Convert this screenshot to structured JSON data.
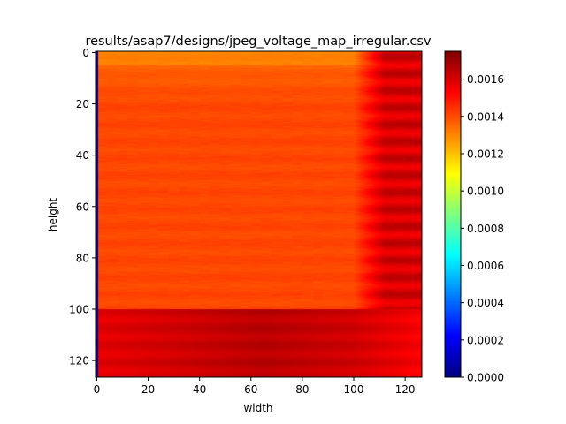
{
  "chart_data": {
    "type": "heatmap",
    "title": "results/asap7/designs/jpeg_voltage_map_irregular.csv",
    "xlabel": "width",
    "ylabel": "height",
    "xlim": [
      0,
      126
    ],
    "ylim": [
      126,
      0
    ],
    "x_ticks": [
      "0",
      "20",
      "40",
      "60",
      "80",
      "100",
      "120"
    ],
    "y_ticks": [
      "0",
      "20",
      "40",
      "60",
      "80",
      "100",
      "120"
    ],
    "colormap": "jet",
    "colorbar": {
      "range": [
        0,
        0.00175
      ],
      "ticks": [
        "0.0000",
        "0.0002",
        "0.0004",
        "0.0006",
        "0.0008",
        "0.0010",
        "0.0012",
        "0.0014",
        "0.0016"
      ]
    },
    "regions": [
      {
        "description": "upper block rows 0-100, cols 0-100",
        "typical_value": 0.0014,
        "min": 0.0013,
        "max": 0.0015
      },
      {
        "description": "upper-right block rows 5-100, cols 100-126",
        "typical_value": 0.0016,
        "min": 0.00145,
        "max": 0.00168
      },
      {
        "description": "lower band rows 100-126",
        "typical_value": 0.0016,
        "min": 0.0015,
        "max": 0.0017
      },
      {
        "description": "left edge column 0",
        "typical_value": 0.0
      }
    ],
    "colors": {
      "low": "#00007f",
      "high": "#7f0000"
    }
  }
}
